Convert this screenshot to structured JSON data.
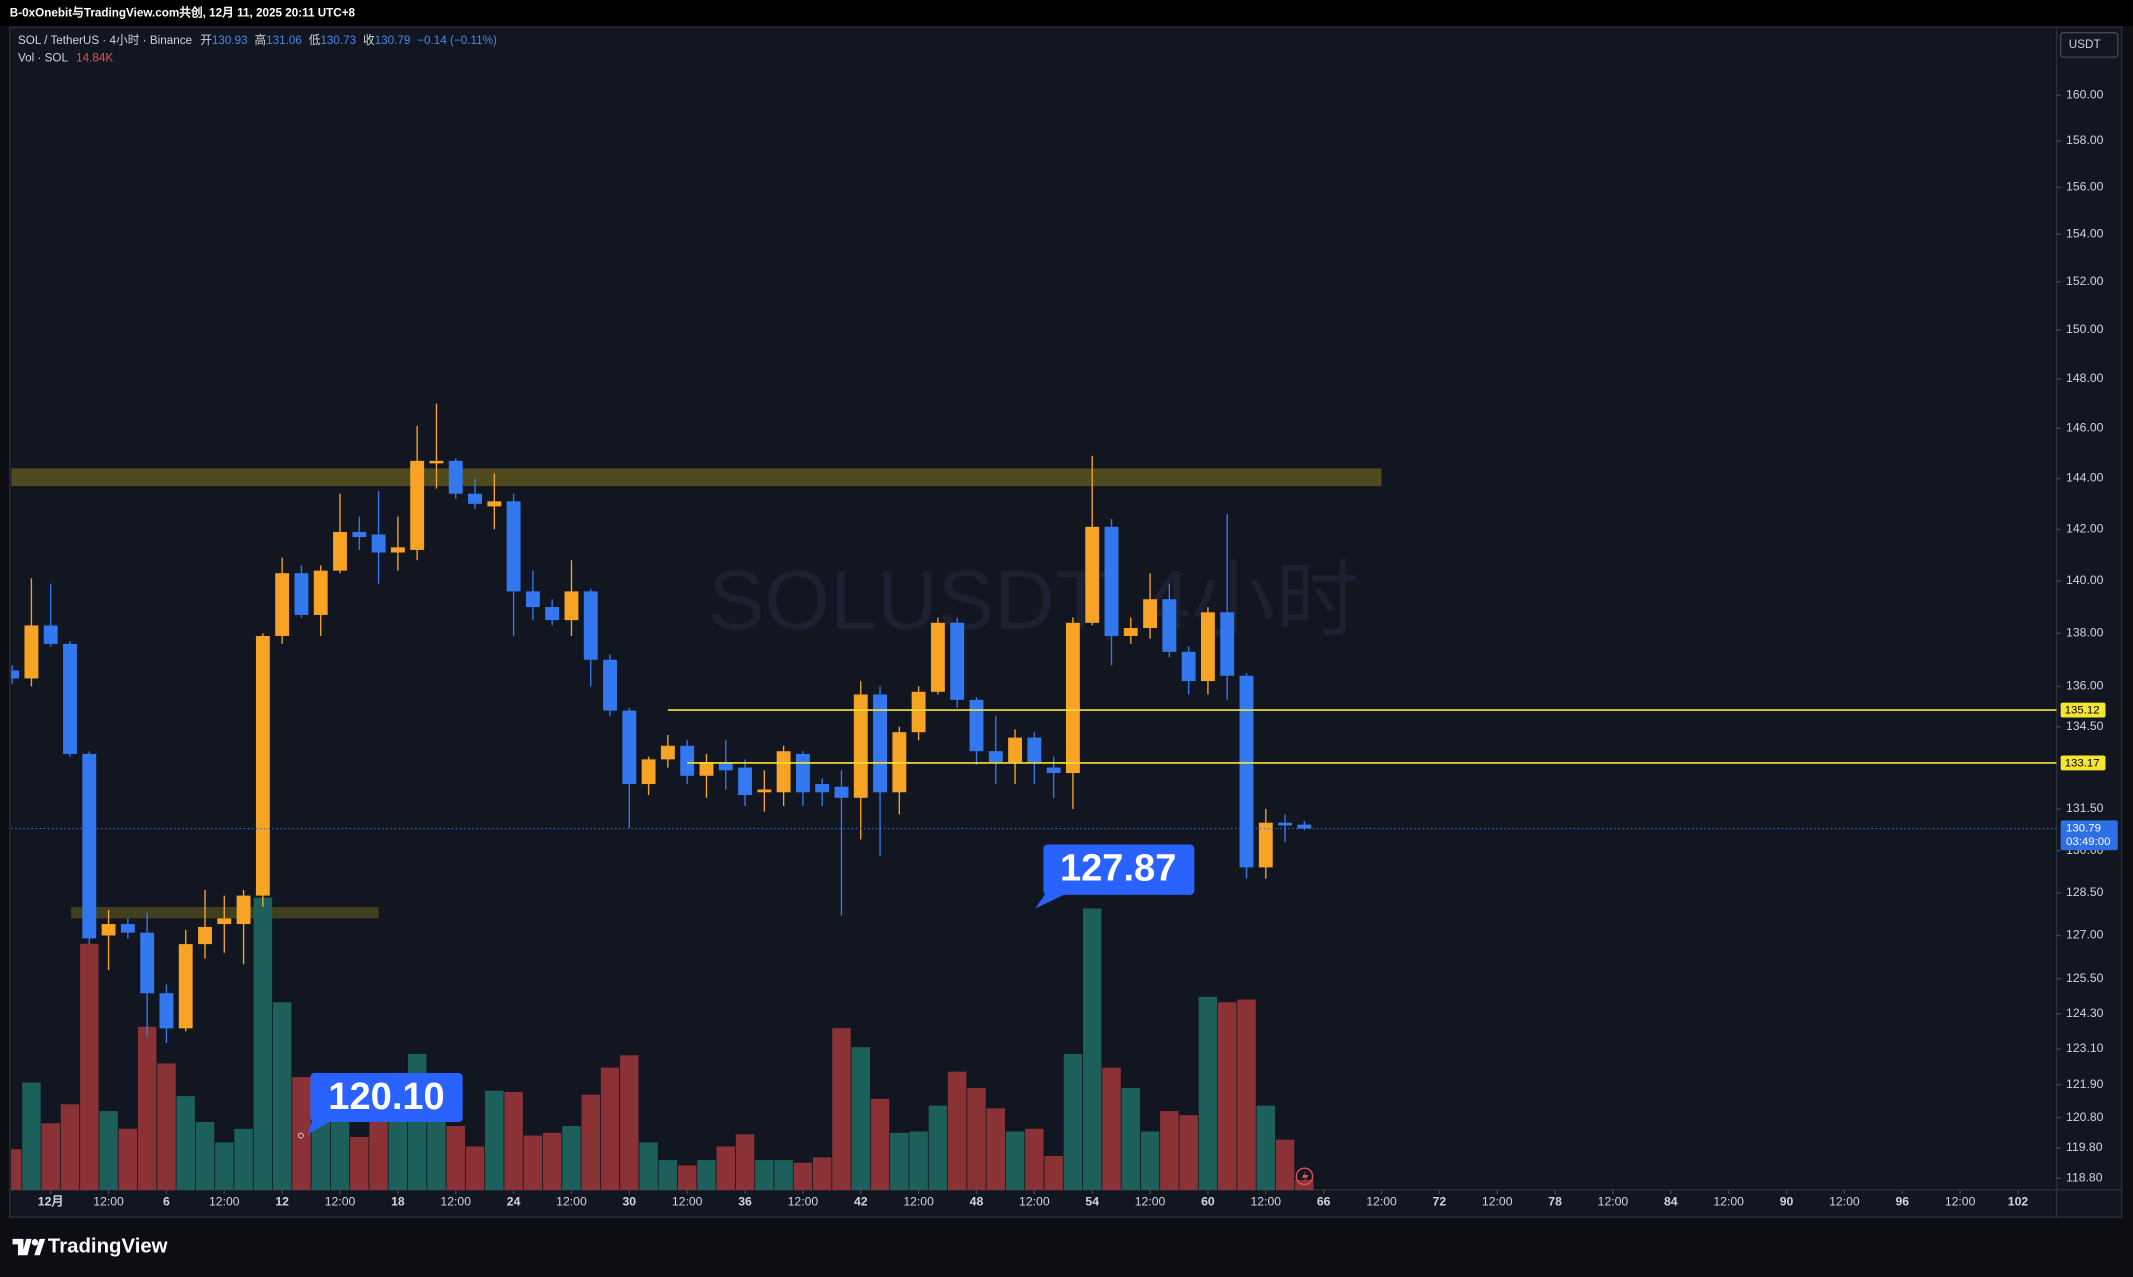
{
  "header": {
    "text": "B-0xOnebit与TradingView.com共创, 12月 11, 2025 20:11 UTC+8"
  },
  "footer": {
    "logo": "TradingView"
  },
  "chart_data": {
    "type": "candlestick",
    "legend": {
      "symbol": "SOL / TetherUS · 4小时 · Binance",
      "open_label": "开",
      "high_label": "高",
      "low_label": "低",
      "close_label": "收",
      "change": "−0.14 (−0.11%)",
      "volume_title": "Vol · SOL",
      "volume_value": "14.84K"
    },
    "watermark": "SOLUSDT, 4小时",
    "currency": "USDT",
    "x": [
      -2,
      -1,
      0,
      1,
      2,
      3,
      4,
      5,
      6,
      7,
      8,
      9,
      10,
      11,
      12,
      13,
      14,
      15,
      16,
      17,
      18,
      19,
      20,
      21,
      22,
      23,
      24,
      25,
      26,
      27,
      28,
      29,
      30,
      31,
      32,
      33,
      34,
      35,
      36,
      37,
      38,
      39,
      40,
      41,
      42,
      43,
      44,
      45,
      46,
      47,
      48,
      49,
      50,
      51,
      52,
      53,
      54,
      55,
      56,
      57,
      58,
      59,
      60,
      61,
      62,
      63,
      64,
      65
    ],
    "open": [
      136.6,
      136.3,
      138.3,
      137.6,
      133.5,
      127.0,
      127.4,
      127.1,
      125.0,
      123.8,
      126.7,
      127.4,
      127.4,
      128.4,
      137.9,
      140.3,
      138.7,
      140.4,
      141.9,
      141.8,
      141.1,
      141.2,
      144.6,
      144.7,
      143.4,
      142.9,
      143.1,
      139.6,
      139.0,
      138.5,
      139.6,
      137.0,
      135.1,
      132.4,
      133.3,
      133.8,
      132.7,
      133.2,
      133.0,
      132.1,
      132.1,
      133.5,
      132.4,
      132.3,
      131.9,
      135.7,
      132.1,
      134.3,
      135.8,
      138.4,
      135.5,
      133.6,
      133.2,
      134.1,
      133.0,
      132.8,
      138.4,
      142.1,
      137.9,
      138.2,
      139.3,
      137.3,
      136.2,
      138.8,
      136.4,
      129.4,
      131.0,
      130.93
    ],
    "high": [
      136.8,
      140.1,
      139.9,
      137.7,
      133.6,
      127.9,
      127.6,
      127.8,
      125.3,
      127.2,
      128.6,
      128.4,
      128.6,
      138.0,
      140.9,
      140.6,
      140.6,
      143.4,
      142.5,
      143.5,
      142.5,
      146.1,
      147.0,
      144.8,
      144.0,
      144.2,
      143.4,
      140.4,
      139.3,
      140.8,
      139.7,
      137.2,
      135.2,
      133.4,
      134.2,
      134.0,
      133.5,
      134.0,
      133.3,
      132.9,
      133.8,
      133.6,
      132.6,
      132.9,
      136.2,
      136.0,
      134.5,
      136.0,
      138.6,
      138.6,
      135.6,
      134.9,
      134.4,
      134.3,
      133.4,
      138.6,
      144.9,
      142.4,
      138.6,
      140.3,
      139.9,
      137.5,
      139.0,
      142.6,
      136.5,
      131.5,
      131.3,
      131.06
    ],
    "low": [
      136.1,
      136.0,
      137.5,
      133.4,
      126.7,
      125.8,
      126.9,
      123.5,
      123.3,
      123.7,
      126.2,
      126.4,
      126.0,
      128.0,
      137.6,
      138.6,
      137.9,
      140.3,
      141.2,
      139.9,
      140.4,
      140.8,
      143.6,
      143.2,
      142.8,
      142.0,
      137.9,
      138.5,
      138.3,
      137.9,
      136.0,
      134.9,
      130.8,
      132.0,
      133.0,
      132.4,
      131.9,
      132.2,
      131.6,
      131.4,
      131.6,
      131.6,
      131.6,
      127.7,
      130.4,
      129.8,
      131.3,
      134.0,
      135.7,
      135.2,
      133.1,
      132.4,
      132.4,
      132.4,
      131.9,
      131.5,
      138.3,
      136.8,
      137.6,
      137.8,
      137.1,
      135.7,
      135.7,
      135.5,
      129.0,
      129.0,
      130.3,
      130.73
    ],
    "close": [
      136.3,
      138.3,
      137.6,
      133.5,
      126.9,
      127.4,
      127.1,
      125.0,
      123.8,
      126.7,
      127.3,
      127.6,
      128.4,
      137.9,
      140.3,
      138.7,
      140.4,
      141.9,
      141.7,
      141.1,
      141.3,
      144.7,
      144.7,
      143.4,
      143.0,
      143.1,
      139.6,
      139.0,
      138.5,
      139.6,
      137.0,
      135.1,
      132.4,
      133.3,
      133.8,
      132.7,
      133.2,
      132.9,
      132.0,
      132.2,
      133.6,
      132.1,
      132.1,
      131.9,
      135.7,
      132.1,
      134.3,
      135.8,
      138.4,
      135.5,
      133.6,
      133.2,
      134.1,
      133.2,
      132.8,
      138.4,
      142.1,
      137.9,
      138.2,
      139.3,
      137.3,
      136.2,
      138.8,
      136.4,
      129.4,
      131.0,
      130.9,
      130.79
    ],
    "volume": [
      60,
      158,
      98,
      126,
      362,
      116,
      90,
      240,
      186,
      138,
      100,
      70,
      90,
      430,
      276,
      166,
      110,
      104,
      78,
      104,
      110,
      200,
      110,
      94,
      64,
      146,
      144,
      80,
      84,
      94,
      140,
      180,
      198,
      70,
      44,
      36,
      44,
      64,
      82,
      44,
      44,
      40,
      48,
      238,
      210,
      134,
      84,
      86,
      124,
      174,
      150,
      120,
      86,
      90,
      50,
      200,
      414,
      180,
      150,
      86,
      116,
      110,
      284,
      276,
      280,
      124,
      74,
      14.84
    ],
    "up_color": "#f7a325",
    "down_color": "#3478f0",
    "volume_up_color": "#1d5f5a",
    "volume_down_color": "#8a3236",
    "xlim": [
      -2.05,
      104
    ],
    "xticks": [
      {
        "value": 0,
        "label": "12月"
      },
      {
        "value": 3,
        "label": "12:00"
      },
      6,
      {
        "value": 9,
        "label": "12:00"
      },
      12,
      {
        "value": 15,
        "label": "12:00"
      },
      18,
      {
        "value": 21,
        "label": "12:00"
      },
      24,
      {
        "value": 27,
        "label": "12:00"
      },
      30,
      {
        "value": 33,
        "label": "12:00"
      },
      36,
      {
        "value": 39,
        "label": "12:00"
      },
      42,
      {
        "value": 45,
        "label": "12:00"
      },
      48,
      {
        "value": 51,
        "label": "12:00"
      },
      54,
      {
        "value": 57,
        "label": "12:00"
      },
      60,
      {
        "value": 63,
        "label": "12:00"
      },
      66,
      {
        "value": 69,
        "label": "12:00"
      },
      72,
      {
        "value": 75,
        "label": "12:00"
      },
      78,
      {
        "value": 81,
        "label": "12:00"
      },
      84,
      {
        "value": 87,
        "label": "12:00"
      },
      90,
      {
        "value": 93,
        "label": "12:00"
      },
      96,
      {
        "value": 99,
        "label": "12:00"
      },
      102
    ],
    "ylim": [
      118.42,
      163.02
    ],
    "log_scale": true,
    "yticks": [
      {
        "value": 160,
        "label": "160.00"
      },
      {
        "value": 158,
        "label": "158.00"
      },
      {
        "value": 156,
        "label": "156.00"
      },
      {
        "value": 154,
        "label": "154.00"
      },
      {
        "value": 152,
        "label": "152.00"
      },
      {
        "value": 150,
        "label": "150.00"
      },
      {
        "value": 148,
        "label": "148.00"
      },
      {
        "value": 146,
        "label": "146.00"
      },
      {
        "value": 144,
        "label": "144.00"
      },
      {
        "value": 142,
        "label": "142.00"
      },
      {
        "value": 140,
        "label": "140.00"
      },
      {
        "value": 138,
        "label": "138.00"
      },
      {
        "value": 136,
        "label": "136.00"
      },
      {
        "value": 134.5,
        "label": "134.50"
      },
      {
        "value": 131.5,
        "label": "131.50"
      },
      {
        "value": 130,
        "label": "130.00"
      },
      {
        "value": 128.5,
        "label": "128.50"
      },
      {
        "value": 127,
        "label": "127.00"
      },
      {
        "value": 125.5,
        "label": "125.50"
      },
      {
        "value": 124.3,
        "label": "124.30"
      },
      {
        "value": 123.1,
        "label": "123.10"
      },
      {
        "value": 121.9,
        "label": "121.90"
      },
      {
        "value": 120.8,
        "label": "120.80"
      },
      {
        "value": 119.8,
        "label": "119.80"
      },
      {
        "value": 118.8,
        "label": "118.80"
      }
    ],
    "volume_lim": [
      0,
      600
    ],
    "levels": [
      {
        "value": 135.12,
        "x_start": 32,
        "color": "#f5e531"
      },
      {
        "value": 133.17,
        "x_start": 33,
        "color": "#f5e531"
      }
    ],
    "zones": [
      {
        "from": 143.7,
        "to": 144.4,
        "x": [
          -2.05,
          69
        ],
        "color": "#5b5520"
      },
      {
        "from": 127.6,
        "to": 128.0,
        "x": [
          1.06,
          17
        ],
        "color": "#4a4620"
      }
    ],
    "last_price_color": "#2f6fe6",
    "last_price_countdown": "03:49:00",
    "annotations": [
      "120.10",
      "127.87"
    ]
  }
}
